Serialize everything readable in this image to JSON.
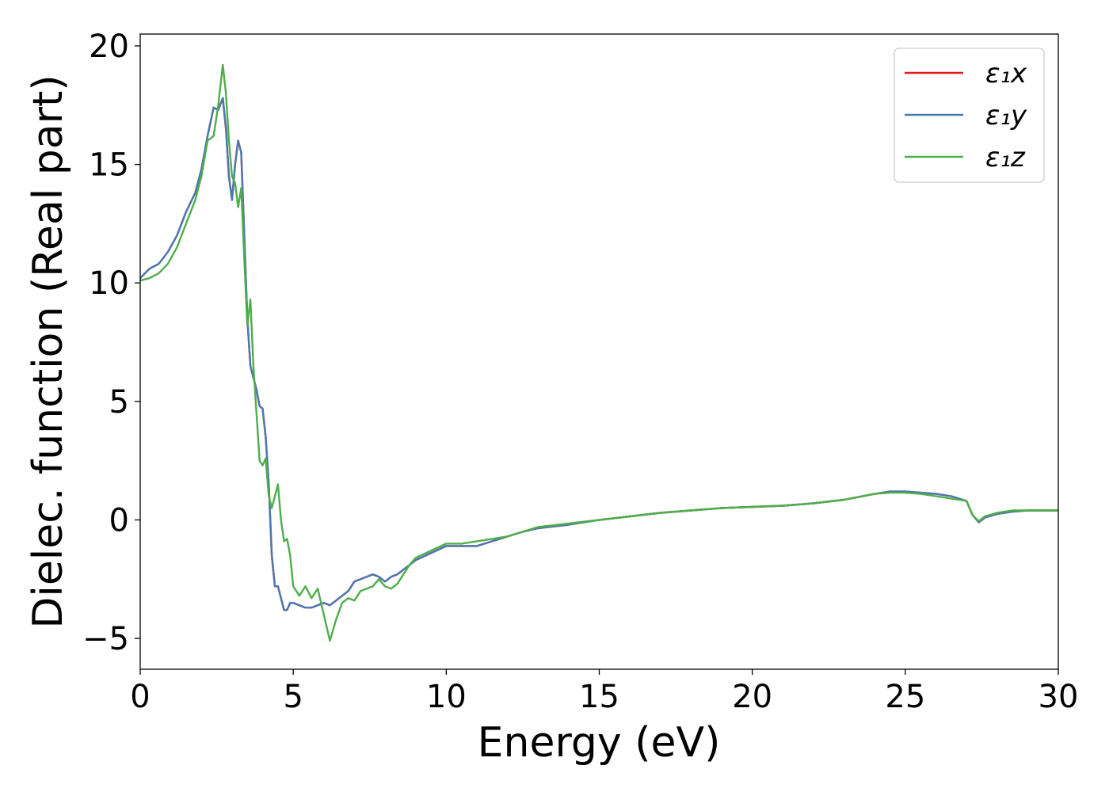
{
  "chart_data": {
    "type": "line",
    "title": "",
    "xlabel": "Energy (eV)",
    "ylabel": "Dielec. function (Real part)",
    "xlim": [
      0,
      30
    ],
    "ylim": [
      -6.3,
      20.5
    ],
    "xticks": [
      0,
      5,
      10,
      15,
      20,
      25,
      30
    ],
    "xtick_labels": [
      "0",
      "5",
      "10",
      "15",
      "20",
      "25",
      "30"
    ],
    "yticks": [
      -5,
      0,
      5,
      10,
      15,
      20
    ],
    "ytick_labels": [
      "−5",
      "0",
      "5",
      "10",
      "15",
      "20"
    ],
    "grid": false,
    "legend_position": "top-right",
    "series": [
      {
        "name": "ε₁x",
        "color": "#e41a1c",
        "x": [
          0,
          0.3,
          0.6,
          0.9,
          1.2,
          1.5,
          1.8,
          2.0,
          2.2,
          2.4,
          2.55,
          2.7,
          2.8,
          2.9,
          3.0,
          3.1,
          3.2,
          3.3,
          3.4,
          3.5,
          3.6,
          3.7,
          3.8,
          3.9,
          4.0,
          4.1,
          4.2,
          4.3,
          4.4,
          4.5,
          4.6,
          4.7,
          4.8,
          4.9,
          5.0,
          5.2,
          5.4,
          5.6,
          5.8,
          6.0,
          6.2,
          6.4,
          6.6,
          6.8,
          7.0,
          7.2,
          7.4,
          7.6,
          7.8,
          8.0,
          8.2,
          8.4,
          8.6,
          8.8,
          9.0,
          9.5,
          10.0,
          10.5,
          11.0,
          11.5,
          12.0,
          12.5,
          13.0,
          14.0,
          15.0,
          16.0,
          17.0,
          18.0,
          19.0,
          20.0,
          21.0,
          22.0,
          23.0,
          24.0,
          24.5,
          25.0,
          25.5,
          26.0,
          26.5,
          27.0,
          27.2,
          27.4,
          27.6,
          28.0,
          28.5,
          29.0,
          29.5,
          30.0
        ],
        "y": [
          10.2,
          10.6,
          10.8,
          11.3,
          12.0,
          13.0,
          13.8,
          14.8,
          16.2,
          17.4,
          17.3,
          17.8,
          16.5,
          14.5,
          13.5,
          15.0,
          16.0,
          15.5,
          12.0,
          8.5,
          6.5,
          6.0,
          5.5,
          4.8,
          4.7,
          3.5,
          1.5,
          -1.5,
          -2.8,
          -2.8,
          -3.3,
          -3.8,
          -3.8,
          -3.5,
          -3.5,
          -3.6,
          -3.7,
          -3.7,
          -3.6,
          -3.5,
          -3.6,
          -3.4,
          -3.2,
          -3.0,
          -2.6,
          -2.5,
          -2.4,
          -2.3,
          -2.4,
          -2.6,
          -2.4,
          -2.3,
          -2.1,
          -1.9,
          -1.7,
          -1.4,
          -1.1,
          -1.1,
          -1.1,
          -0.9,
          -0.7,
          -0.5,
          -0.35,
          -0.2,
          0.0,
          0.15,
          0.3,
          0.4,
          0.5,
          0.55,
          0.6,
          0.7,
          0.85,
          1.1,
          1.2,
          1.2,
          1.15,
          1.1,
          1.0,
          0.8,
          0.2,
          -0.1,
          0.1,
          0.25,
          0.35,
          0.4,
          0.4,
          0.4
        ]
      },
      {
        "name": "ε₁y",
        "color": "#4a78b0",
        "x": [
          0,
          0.3,
          0.6,
          0.9,
          1.2,
          1.5,
          1.8,
          2.0,
          2.2,
          2.4,
          2.55,
          2.7,
          2.8,
          2.9,
          3.0,
          3.1,
          3.2,
          3.3,
          3.4,
          3.5,
          3.6,
          3.7,
          3.8,
          3.9,
          4.0,
          4.1,
          4.2,
          4.3,
          4.4,
          4.5,
          4.6,
          4.7,
          4.8,
          4.9,
          5.0,
          5.2,
          5.4,
          5.6,
          5.8,
          6.0,
          6.2,
          6.4,
          6.6,
          6.8,
          7.0,
          7.2,
          7.4,
          7.6,
          7.8,
          8.0,
          8.2,
          8.4,
          8.6,
          8.8,
          9.0,
          9.5,
          10.0,
          10.5,
          11.0,
          11.5,
          12.0,
          12.5,
          13.0,
          14.0,
          15.0,
          16.0,
          17.0,
          18.0,
          19.0,
          20.0,
          21.0,
          22.0,
          23.0,
          24.0,
          24.5,
          25.0,
          25.5,
          26.0,
          26.5,
          27.0,
          27.2,
          27.4,
          27.6,
          28.0,
          28.5,
          29.0,
          29.5,
          30.0
        ],
        "y": [
          10.2,
          10.6,
          10.8,
          11.3,
          12.0,
          13.0,
          13.8,
          14.8,
          16.2,
          17.4,
          17.3,
          17.8,
          16.5,
          14.5,
          13.5,
          15.0,
          16.0,
          15.5,
          12.0,
          8.5,
          6.5,
          6.0,
          5.5,
          4.8,
          4.7,
          3.5,
          1.5,
          -1.5,
          -2.8,
          -2.8,
          -3.3,
          -3.8,
          -3.8,
          -3.5,
          -3.5,
          -3.6,
          -3.7,
          -3.7,
          -3.6,
          -3.5,
          -3.6,
          -3.4,
          -3.2,
          -3.0,
          -2.6,
          -2.5,
          -2.4,
          -2.3,
          -2.4,
          -2.6,
          -2.4,
          -2.3,
          -2.1,
          -1.9,
          -1.7,
          -1.4,
          -1.1,
          -1.1,
          -1.1,
          -0.9,
          -0.7,
          -0.5,
          -0.35,
          -0.2,
          0.0,
          0.15,
          0.3,
          0.4,
          0.5,
          0.55,
          0.6,
          0.7,
          0.85,
          1.1,
          1.2,
          1.2,
          1.15,
          1.1,
          1.0,
          0.8,
          0.2,
          -0.1,
          0.1,
          0.25,
          0.35,
          0.4,
          0.4,
          0.4
        ]
      },
      {
        "name": "ε₁z",
        "color": "#4daf4a",
        "x": [
          0,
          0.3,
          0.6,
          0.9,
          1.2,
          1.5,
          1.8,
          2.0,
          2.2,
          2.4,
          2.55,
          2.7,
          2.8,
          2.9,
          3.0,
          3.1,
          3.2,
          3.3,
          3.4,
          3.5,
          3.6,
          3.7,
          3.8,
          3.9,
          4.0,
          4.1,
          4.2,
          4.3,
          4.4,
          4.5,
          4.6,
          4.7,
          4.8,
          4.9,
          5.0,
          5.2,
          5.4,
          5.6,
          5.8,
          6.0,
          6.2,
          6.4,
          6.6,
          6.8,
          7.0,
          7.2,
          7.4,
          7.6,
          7.8,
          8.0,
          8.2,
          8.4,
          8.6,
          8.8,
          9.0,
          9.5,
          10.0,
          10.5,
          11.0,
          11.5,
          12.0,
          12.5,
          13.0,
          14.0,
          15.0,
          16.0,
          17.0,
          18.0,
          19.0,
          20.0,
          21.0,
          22.0,
          23.0,
          24.0,
          24.5,
          25.0,
          25.5,
          26.0,
          26.5,
          27.0,
          27.2,
          27.4,
          27.6,
          28.0,
          28.5,
          29.0,
          29.5,
          30.0
        ],
        "y": [
          10.1,
          10.2,
          10.4,
          10.8,
          11.5,
          12.5,
          13.5,
          14.5,
          16.0,
          16.2,
          17.5,
          19.2,
          18.0,
          16.0,
          14.5,
          14.2,
          13.2,
          14.0,
          11.0,
          8.2,
          9.3,
          6.5,
          4.5,
          2.5,
          2.3,
          2.6,
          1.0,
          0.5,
          1.0,
          1.5,
          0.0,
          -0.9,
          -0.8,
          -1.5,
          -2.8,
          -3.2,
          -2.8,
          -3.3,
          -2.9,
          -4.0,
          -5.1,
          -4.2,
          -3.5,
          -3.3,
          -3.4,
          -3.0,
          -2.9,
          -2.8,
          -2.5,
          -2.8,
          -2.9,
          -2.7,
          -2.3,
          -1.9,
          -1.6,
          -1.3,
          -1.0,
          -1.0,
          -0.9,
          -0.8,
          -0.7,
          -0.5,
          -0.3,
          -0.15,
          0.0,
          0.15,
          0.3,
          0.4,
          0.5,
          0.55,
          0.6,
          0.7,
          0.85,
          1.1,
          1.15,
          1.15,
          1.1,
          1.0,
          0.9,
          0.8,
          0.2,
          -0.05,
          0.15,
          0.3,
          0.4,
          0.4,
          0.4,
          0.4
        ]
      }
    ]
  }
}
